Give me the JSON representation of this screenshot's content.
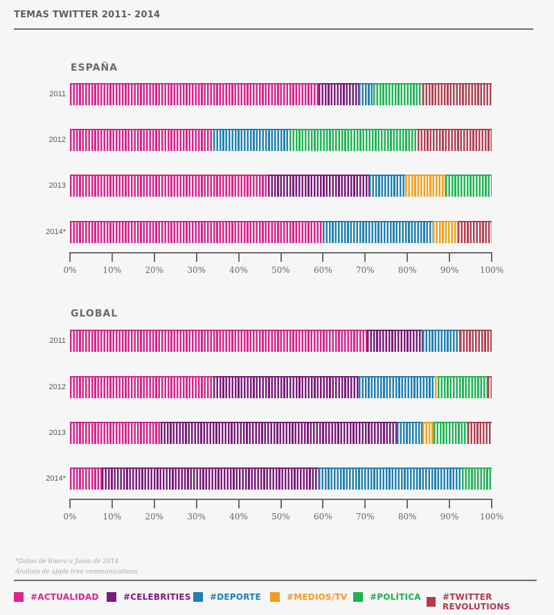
{
  "title": "TEMAS TWITTER 2011- 2014",
  "colors": {
    "actualidad": "#d6248c",
    "celebrities": "#7a1a7a",
    "deporte": "#1f80b0",
    "medios_tv": "#f0a020",
    "politica": "#1fb455",
    "twitter_revolutions": "#b04050"
  },
  "legend": [
    {
      "key": "actualidad",
      "label": "#ACTUALIDAD",
      "color": "#e0228a"
    },
    {
      "key": "celebrities",
      "label": "#CELEBRITIES",
      "color": "#7d1a7d"
    },
    {
      "key": "deporte",
      "label": "#DEPORTE",
      "color": "#1e7eb5"
    },
    {
      "key": "medios_tv",
      "label": "#MEDIOS/TV",
      "color": "#f39a1e"
    },
    {
      "key": "politica",
      "label": "#POLÍTICA",
      "color": "#1db24e"
    },
    {
      "key": "twitter_revolutions",
      "label": "#TWITTER REVOLUTIONS",
      "color": "#b23a4c"
    }
  ],
  "notes": {
    "line1": "*Datos de Enero a Junio de 2014",
    "line2": "Análisis de apple tree communications"
  },
  "chart_data": [
    {
      "type": "bar",
      "stacked": true,
      "orientation": "horizontal",
      "title": "ESPAÑA",
      "categories": [
        "2011",
        "2012",
        "2013",
        "2014*"
      ],
      "xlim": [
        0,
        100
      ],
      "xticks": [
        "0%",
        "10%",
        "20%",
        "30%",
        "40%",
        "50%",
        "60%",
        "70%",
        "80%",
        "90%",
        "100%"
      ],
      "series": [
        {
          "name": "#ACTUALIDAD",
          "key": "actualidad",
          "values": [
            59,
            34,
            47,
            60
          ]
        },
        {
          "name": "#CELEBRITIES",
          "key": "celebrities",
          "values": [
            9.5,
            0,
            24,
            0
          ]
        },
        {
          "name": "#DEPORTE",
          "key": "deporte",
          "values": [
            3.5,
            18,
            8.5,
            26
          ]
        },
        {
          "name": "#MEDIOS/TV",
          "key": "medios_tv",
          "values": [
            0,
            0,
            9.5,
            6
          ]
        },
        {
          "name": "#POLÍTICA",
          "key": "politica",
          "values": [
            11.5,
            30.5,
            11,
            0
          ]
        },
        {
          "name": "#TWITTER REVOLUTIONS",
          "key": "twitter_revolutions",
          "values": [
            16.5,
            17.5,
            0,
            8
          ]
        }
      ]
    },
    {
      "type": "bar",
      "stacked": true,
      "orientation": "horizontal",
      "title": "GLOBAL",
      "categories": [
        "2011",
        "2012",
        "2013",
        "2014*"
      ],
      "xlim": [
        0,
        100
      ],
      "xticks": [
        "0%",
        "10%",
        "20%",
        "30%",
        "40%",
        "50%",
        "60%",
        "70%",
        "80%",
        "90%",
        "100%"
      ],
      "series": [
        {
          "name": "#ACTUALIDAD",
          "key": "actualidad",
          "values": [
            70.5,
            34,
            21.5,
            7.5
          ]
        },
        {
          "name": "#CELEBRITIES",
          "key": "celebrities",
          "values": [
            13,
            34.5,
            56,
            51.5
          ]
        },
        {
          "name": "#DEPORTE",
          "key": "deporte",
          "values": [
            9,
            18,
            6,
            34
          ]
        },
        {
          "name": "#MEDIOS/TV",
          "key": "medios_tv",
          "values": [
            0,
            0.7,
            2.7,
            0
          ]
        },
        {
          "name": "#POLÍTICA",
          "key": "politica",
          "values": [
            0,
            11.8,
            8,
            7
          ]
        },
        {
          "name": "#TWITTER REVOLUTIONS",
          "key": "twitter_revolutions",
          "values": [
            7.5,
            1,
            5.8,
            0
          ]
        }
      ]
    }
  ]
}
